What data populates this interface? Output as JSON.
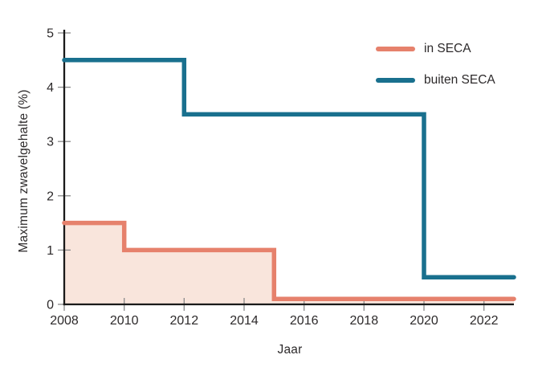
{
  "chart_data": {
    "type": "line",
    "subtype": "step",
    "title": "",
    "xlabel": "Jaar",
    "ylabel": "Maximum zwavelgehalte (%)",
    "xlim": [
      2008,
      2023
    ],
    "ylim": [
      0,
      5
    ],
    "x_ticks": [
      2008,
      2010,
      2012,
      2014,
      2016,
      2018,
      2020,
      2022
    ],
    "y_ticks": [
      0,
      1,
      2,
      3,
      4,
      5
    ],
    "grid": false,
    "legend_position": "top-right",
    "series": [
      {
        "name": "in SECA",
        "color": "#e6816c",
        "fill": true,
        "fill_color": "#f9e5dc",
        "points": [
          [
            2008,
            1.5
          ],
          [
            2010,
            1.5
          ],
          [
            2010,
            1.0
          ],
          [
            2015,
            1.0
          ],
          [
            2015,
            0.1
          ],
          [
            2023,
            0.1
          ]
        ]
      },
      {
        "name": "buiten SECA",
        "color": "#19708e",
        "fill": false,
        "points": [
          [
            2008,
            4.5
          ],
          [
            2012,
            4.5
          ],
          [
            2012,
            3.5
          ],
          [
            2020,
            3.5
          ],
          [
            2020,
            0.5
          ],
          [
            2023,
            0.5
          ]
        ]
      }
    ]
  },
  "colors": {
    "axis": "#1a1a1a",
    "tick": "#8a8a8a",
    "text": "#2d2a2b",
    "background": "#ffffff"
  }
}
